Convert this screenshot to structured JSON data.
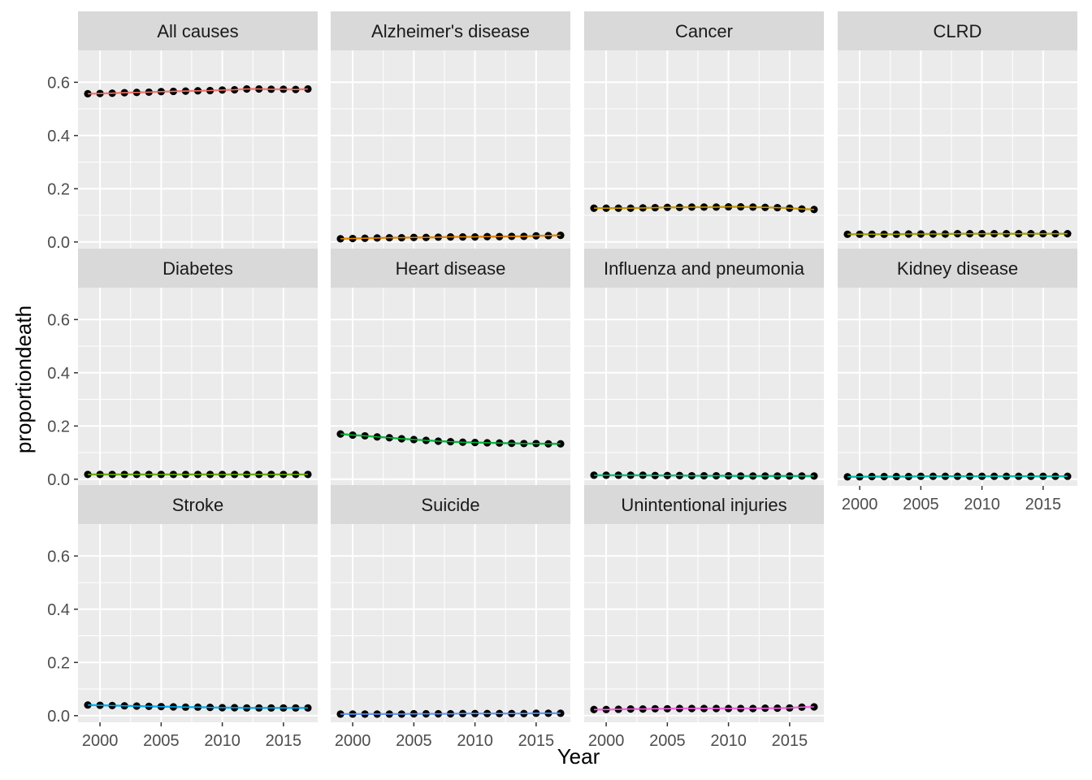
{
  "chart_data": {
    "type": "line",
    "xlabel": "Year",
    "ylabel": "proportiondeath",
    "xlim": [
      1998.2,
      2017.8
    ],
    "ylim": [
      -0.025,
      0.72
    ],
    "x_ticks": [
      2000,
      2005,
      2010,
      2015
    ],
    "x_tick_labels": [
      "2000",
      "2005",
      "2010",
      "2015"
    ],
    "y_ticks": [
      0,
      0.2,
      0.4,
      0.6
    ],
    "y_tick_labels": [
      "0.0",
      "0.2",
      "0.4",
      "0.6"
    ],
    "grid": true,
    "legend": "none",
    "x": [
      1999,
      2000,
      2001,
      2002,
      2003,
      2004,
      2005,
      2006,
      2007,
      2008,
      2009,
      2010,
      2011,
      2012,
      2013,
      2014,
      2015,
      2016,
      2017
    ],
    "facets": [
      {
        "name": "All causes",
        "color": "#F8766D",
        "values": [
          0.557,
          0.558,
          0.559,
          0.561,
          0.562,
          0.563,
          0.565,
          0.566,
          0.567,
          0.568,
          0.569,
          0.571,
          0.572,
          0.575,
          0.575,
          0.574,
          0.574,
          0.573,
          0.575
        ]
      },
      {
        "name": "Alzheimer's disease",
        "color": "#E58700",
        "values": [
          0.012,
          0.013,
          0.014,
          0.015,
          0.016,
          0.016,
          0.017,
          0.017,
          0.018,
          0.019,
          0.019,
          0.019,
          0.02,
          0.02,
          0.021,
          0.021,
          0.023,
          0.024,
          0.025
        ]
      },
      {
        "name": "Cancer",
        "color": "#C99800",
        "values": [
          0.127,
          0.127,
          0.127,
          0.127,
          0.128,
          0.129,
          0.13,
          0.13,
          0.131,
          0.131,
          0.131,
          0.132,
          0.132,
          0.131,
          0.13,
          0.129,
          0.127,
          0.124,
          0.122
        ]
      },
      {
        "name": "CLRD",
        "color": "#A3A500",
        "values": [
          0.029,
          0.029,
          0.029,
          0.029,
          0.029,
          0.03,
          0.03,
          0.03,
          0.03,
          0.031,
          0.031,
          0.031,
          0.031,
          0.031,
          0.031,
          0.031,
          0.031,
          0.031,
          0.031
        ]
      },
      {
        "name": "Diabetes",
        "color": "#6BB100",
        "values": [
          0.018,
          0.018,
          0.018,
          0.018,
          0.018,
          0.018,
          0.018,
          0.018,
          0.018,
          0.018,
          0.018,
          0.018,
          0.018,
          0.018,
          0.018,
          0.018,
          0.018,
          0.018,
          0.018
        ]
      },
      {
        "name": "Heart disease",
        "color": "#00BA38",
        "values": [
          0.17,
          0.166,
          0.163,
          0.159,
          0.156,
          0.152,
          0.149,
          0.146,
          0.143,
          0.141,
          0.139,
          0.138,
          0.137,
          0.136,
          0.135,
          0.134,
          0.134,
          0.133,
          0.133
        ]
      },
      {
        "name": "Influenza and pneumonia",
        "color": "#00BF7D",
        "values": [
          0.015,
          0.015,
          0.015,
          0.015,
          0.015,
          0.014,
          0.014,
          0.014,
          0.013,
          0.013,
          0.013,
          0.013,
          0.012,
          0.012,
          0.012,
          0.012,
          0.012,
          0.012,
          0.012
        ]
      },
      {
        "name": "Kidney disease",
        "color": "#00C0AF",
        "values": [
          0.009,
          0.009,
          0.01,
          0.01,
          0.01,
          0.01,
          0.011,
          0.011,
          0.011,
          0.011,
          0.011,
          0.011,
          0.011,
          0.011,
          0.011,
          0.011,
          0.011,
          0.011,
          0.011
        ]
      },
      {
        "name": "Stroke",
        "color": "#00B0F6",
        "values": [
          0.04,
          0.039,
          0.038,
          0.037,
          0.036,
          0.035,
          0.034,
          0.033,
          0.032,
          0.032,
          0.031,
          0.03,
          0.03,
          0.029,
          0.029,
          0.029,
          0.029,
          0.029,
          0.029
        ]
      },
      {
        "name": "Suicide",
        "color": "#619CFF",
        "values": [
          0.006,
          0.006,
          0.006,
          0.006,
          0.006,
          0.006,
          0.007,
          0.007,
          0.007,
          0.007,
          0.008,
          0.008,
          0.008,
          0.008,
          0.008,
          0.008,
          0.009,
          0.009,
          0.009
        ]
      },
      {
        "name": "Unintentional injuries",
        "color": "#F564E3",
        "values": [
          0.023,
          0.023,
          0.024,
          0.025,
          0.025,
          0.026,
          0.026,
          0.027,
          0.027,
          0.027,
          0.027,
          0.027,
          0.027,
          0.027,
          0.028,
          0.028,
          0.029,
          0.032,
          0.033
        ]
      }
    ]
  }
}
